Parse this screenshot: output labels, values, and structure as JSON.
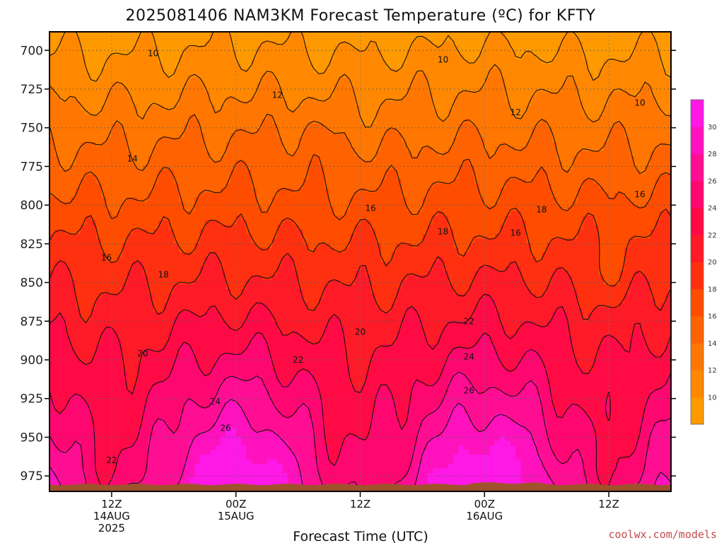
{
  "chart_data": {
    "type": "heatmap",
    "title": "2025081406 NAM3KM Forecast Temperature (ºC) for KFTY",
    "xlabel": "Forecast Time (UTC)",
    "credit": "coolwx.com/models",
    "y_axis": {
      "ticks": [
        700,
        725,
        750,
        775,
        800,
        825,
        850,
        875,
        900,
        925,
        950,
        975
      ],
      "range": [
        688,
        985
      ],
      "orientation": "pressure decreasing upward"
    },
    "x_axis": {
      "range_hours": [
        0,
        60
      ],
      "ticks": [
        {
          "hour": 6,
          "lines": [
            "12Z",
            "14AUG",
            "2025"
          ]
        },
        {
          "hour": 18,
          "lines": [
            "00Z",
            "15AUG"
          ]
        },
        {
          "hour": 30,
          "lines": [
            "12Z"
          ]
        },
        {
          "hour": 42,
          "lines": [
            "00Z",
            "16AUG"
          ]
        },
        {
          "hour": 54,
          "lines": [
            "12Z"
          ]
        }
      ]
    },
    "grid": "dotted",
    "colorbar": {
      "levels": [
        8,
        10,
        12,
        14,
        16,
        18,
        20,
        22,
        24,
        26,
        28,
        30,
        32
      ],
      "tick_labels": [
        "10",
        "12",
        "14",
        "16",
        "18",
        "20",
        "22",
        "24",
        "26",
        "28",
        "30"
      ],
      "colors": [
        "#ff9900",
        "#ff8800",
        "#ff7700",
        "#ff6200",
        "#ff4d00",
        "#ff3010",
        "#ff1a28",
        "#ff0a45",
        "#ff0770",
        "#ff0e94",
        "#ff12bd",
        "#ff18e6"
      ]
    },
    "contour_labels": [
      {
        "value": "10",
        "hour": 10.0,
        "p": 702
      },
      {
        "value": "10",
        "hour": 38.0,
        "p": 706
      },
      {
        "value": "10",
        "hour": 57.0,
        "p": 734
      },
      {
        "value": "12",
        "hour": 22.0,
        "p": 729
      },
      {
        "value": "12",
        "hour": 45.0,
        "p": 740
      },
      {
        "value": "14",
        "hour": 8.0,
        "p": 770
      },
      {
        "value": "16",
        "hour": 31.0,
        "p": 802
      },
      {
        "value": "16",
        "hour": 45.0,
        "p": 818
      },
      {
        "value": "16",
        "hour": 5.5,
        "p": 834
      },
      {
        "value": "16",
        "hour": 57.0,
        "p": 793
      },
      {
        "value": "18",
        "hour": 47.5,
        "p": 803
      },
      {
        "value": "18",
        "hour": 38.0,
        "p": 817
      },
      {
        "value": "18",
        "hour": 11.0,
        "p": 845
      },
      {
        "value": "20",
        "hour": 30.0,
        "p": 882
      },
      {
        "value": "20",
        "hour": 9.0,
        "p": 896
      },
      {
        "value": "22",
        "hour": 40.5,
        "p": 875
      },
      {
        "value": "22",
        "hour": 24.0,
        "p": 900
      },
      {
        "value": "22",
        "hour": 6.0,
        "p": 965
      },
      {
        "value": "24",
        "hour": 40.5,
        "p": 898
      },
      {
        "value": "24",
        "hour": 16.0,
        "p": 927
      },
      {
        "value": "26",
        "hour": 40.5,
        "p": 920
      },
      {
        "value": "26",
        "hour": 17.0,
        "p": 944
      }
    ]
  }
}
